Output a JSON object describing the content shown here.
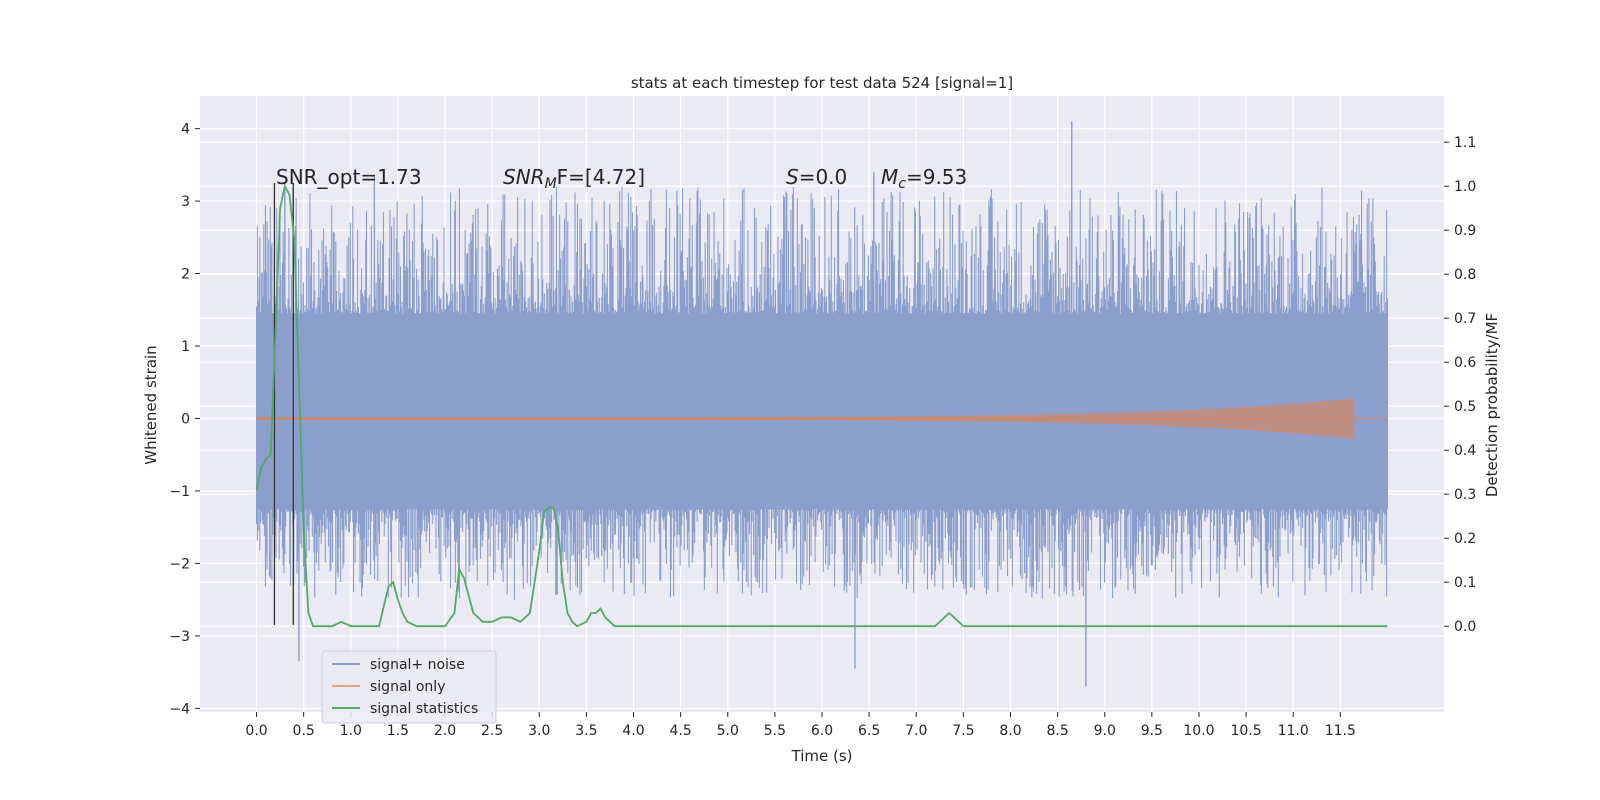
{
  "chart_data": {
    "type": "line",
    "title": "stats at each timestep for test data 524 [signal=1]",
    "xlabel": "Time (s)",
    "ylabel": "Whitened strain",
    "ylabel_right": "Detection probability/MF",
    "xlim": [
      -0.6,
      12.6
    ],
    "ylim": [
      -4.05,
      4.45
    ],
    "ylim_right": [
      -0.195,
      1.205
    ],
    "x_ticks": [
      "0.0",
      "0.5",
      "1.0",
      "1.5",
      "2.0",
      "2.5",
      "3.0",
      "3.5",
      "4.0",
      "4.5",
      "5.0",
      "5.5",
      "6.0",
      "6.5",
      "7.0",
      "7.5",
      "8.0",
      "8.5",
      "9.0",
      "9.5",
      "10.0",
      "10.5",
      "11.0",
      "11.5"
    ],
    "y_ticks": [
      "4",
      "3",
      "2",
      "1",
      "0",
      "−1",
      "−2",
      "−3",
      "−4"
    ],
    "y_ticks_right": [
      "1.1",
      "1.0",
      "0.9",
      "0.8",
      "0.7",
      "0.6",
      "0.5",
      "0.4",
      "0.3",
      "0.2",
      "0.1",
      "0.0"
    ],
    "grid": true,
    "legend_position": "lower-left",
    "annotations": {
      "snr_opt": "SNR_opt=1.73",
      "snr_mf_a": "SNR",
      "snr_mf_sub": "M",
      "snr_mf_b": "F=[4.72]",
      "s_a": "S",
      "s_b": "=0.0",
      "mc_a": "M",
      "mc_sub": "c",
      "mc_b": "=9.53"
    },
    "vertical_lines_x": [
      0.19,
      0.39
    ],
    "series": [
      {
        "name": "signal+ noise",
        "color": "#8c9fcc",
        "x_range": [
          0.0,
          12.0
        ],
        "core_band": [
          -1.25,
          1.45
        ],
        "typical_extremes": [
          -2.5,
          3.2
        ],
        "notable_peaks": [
          [
            0.3,
            3.25
          ],
          [
            1.25,
            3.35
          ],
          [
            8.65,
            4.1
          ],
          [
            6.55,
            3.4
          ],
          [
            0.45,
            -3.35
          ],
          [
            6.35,
            -3.45
          ],
          [
            8.8,
            -3.7
          ]
        ]
      },
      {
        "name": "signal only",
        "color": "#dd8452",
        "x_range": [
          0.0,
          11.65
        ],
        "amplitude_start": 0.02,
        "amplitude_end": 0.28
      },
      {
        "name": "signal statistics",
        "color": "#55a868",
        "axis": "right",
        "x": [
          0.0,
          0.05,
          0.1,
          0.15,
          0.2,
          0.25,
          0.3,
          0.35,
          0.4,
          0.45,
          0.5,
          0.55,
          0.6,
          0.65,
          0.7,
          0.8,
          0.9,
          1.0,
          1.1,
          1.2,
          1.3,
          1.4,
          1.45,
          1.5,
          1.55,
          1.6,
          1.7,
          1.8,
          1.9,
          2.0,
          2.1,
          2.15,
          2.2,
          2.25,
          2.3,
          2.4,
          2.5,
          2.6,
          2.7,
          2.8,
          2.9,
          3.0,
          3.05,
          3.1,
          3.15,
          3.2,
          3.25,
          3.3,
          3.35,
          3.4,
          3.5,
          3.55,
          3.6,
          3.65,
          3.7,
          3.8,
          3.9,
          4.0,
          4.2,
          4.4,
          4.5,
          4.6,
          4.8,
          5.0,
          5.2,
          5.5,
          6.0,
          6.5,
          7.0,
          7.2,
          7.3,
          7.35,
          7.4,
          7.5,
          7.6,
          8.0,
          9.0,
          10.0,
          10.5,
          11.0,
          11.2,
          11.3,
          11.5,
          11.7,
          11.9,
          12.0
        ],
        "y": [
          0.31,
          0.36,
          0.38,
          0.39,
          0.66,
          0.95,
          1.0,
          0.98,
          0.88,
          0.56,
          0.22,
          0.03,
          0.0,
          0.0,
          0.0,
          0.0,
          0.01,
          0.0,
          0.0,
          0.0,
          0.0,
          0.09,
          0.1,
          0.06,
          0.03,
          0.01,
          0.0,
          0.0,
          0.0,
          0.0,
          0.03,
          0.13,
          0.11,
          0.07,
          0.03,
          0.01,
          0.01,
          0.02,
          0.02,
          0.01,
          0.03,
          0.17,
          0.26,
          0.27,
          0.27,
          0.22,
          0.1,
          0.03,
          0.01,
          0.0,
          0.01,
          0.03,
          0.03,
          0.04,
          0.02,
          0.0,
          0.0,
          0.0,
          0.0,
          0.0,
          0.0,
          0.0,
          0.0,
          0.0,
          0.0,
          0.0,
          0.0,
          0.0,
          0.0,
          0.0,
          0.02,
          0.03,
          0.02,
          0.0,
          0.0,
          0.0,
          0.0,
          0.0,
          0.0,
          0.0,
          0.0,
          0.0,
          0.0,
          0.0,
          0.0,
          0.0
        ]
      }
    ]
  }
}
